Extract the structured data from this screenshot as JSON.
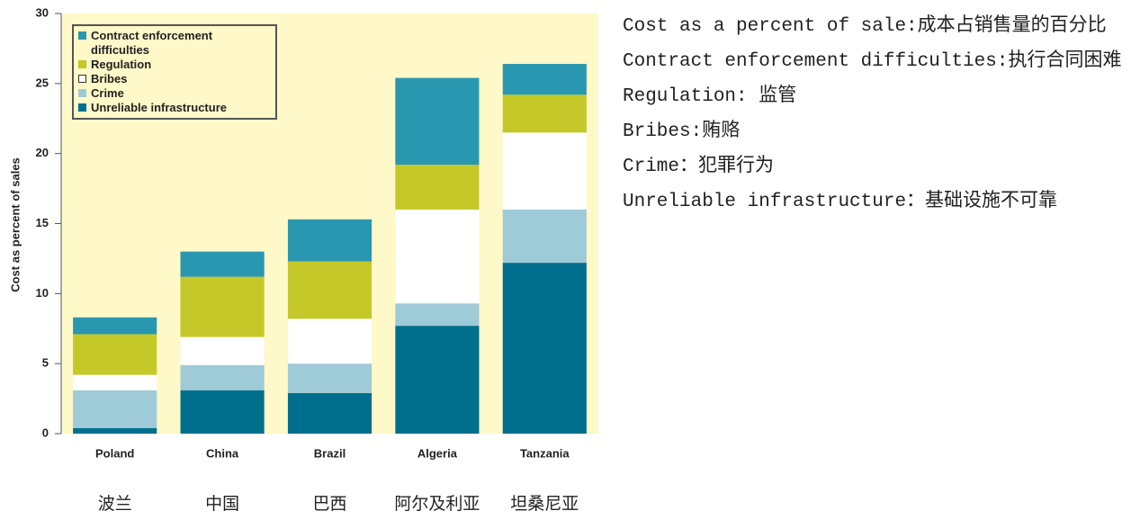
{
  "chart_data": {
    "type": "bar",
    "stacked": true,
    "ylabel": "Cost as percent of sales",
    "categories": [
      "Poland",
      "China",
      "Brazil",
      "Algeria",
      "Tanzania"
    ],
    "translations": [
      "波兰",
      "中国",
      "巴西",
      "阿尔及利亚",
      "坦桑尼亚"
    ],
    "series": [
      {
        "name": "Contract enforcement difficulties",
        "color": "#2a97b0",
        "values": [
          1.2,
          1.8,
          3.0,
          6.2,
          2.2
        ]
      },
      {
        "name": "Regulation",
        "color": "#c4c829",
        "values": [
          2.9,
          4.3,
          4.1,
          3.2,
          2.7
        ]
      },
      {
        "name": "Bribes",
        "color": "#ffffff",
        "values": [
          1.1,
          2.0,
          3.2,
          6.7,
          5.5
        ]
      },
      {
        "name": "Crime",
        "color": "#9fcad8",
        "values": [
          2.7,
          1.8,
          2.1,
          1.6,
          3.8
        ]
      },
      {
        "name": "Unreliable infrastructure",
        "color": "#006f8e",
        "values": [
          0.4,
          3.1,
          2.9,
          7.7,
          12.2
        ]
      }
    ],
    "ylim": [
      0,
      30
    ],
    "yticks": [
      0,
      5,
      10,
      15,
      20,
      25,
      30
    ],
    "legend": "upper left"
  },
  "notes": [
    "Cost as a percent of sale:成本占销售量的百分比",
    "Contract enforcement difficulties:执行合同困难",
    "Regulation: 监管",
    "Bribes:贿赂",
    "Crime：犯罪行为",
    "Unreliable infrastructure：基础设施不可靠"
  ]
}
